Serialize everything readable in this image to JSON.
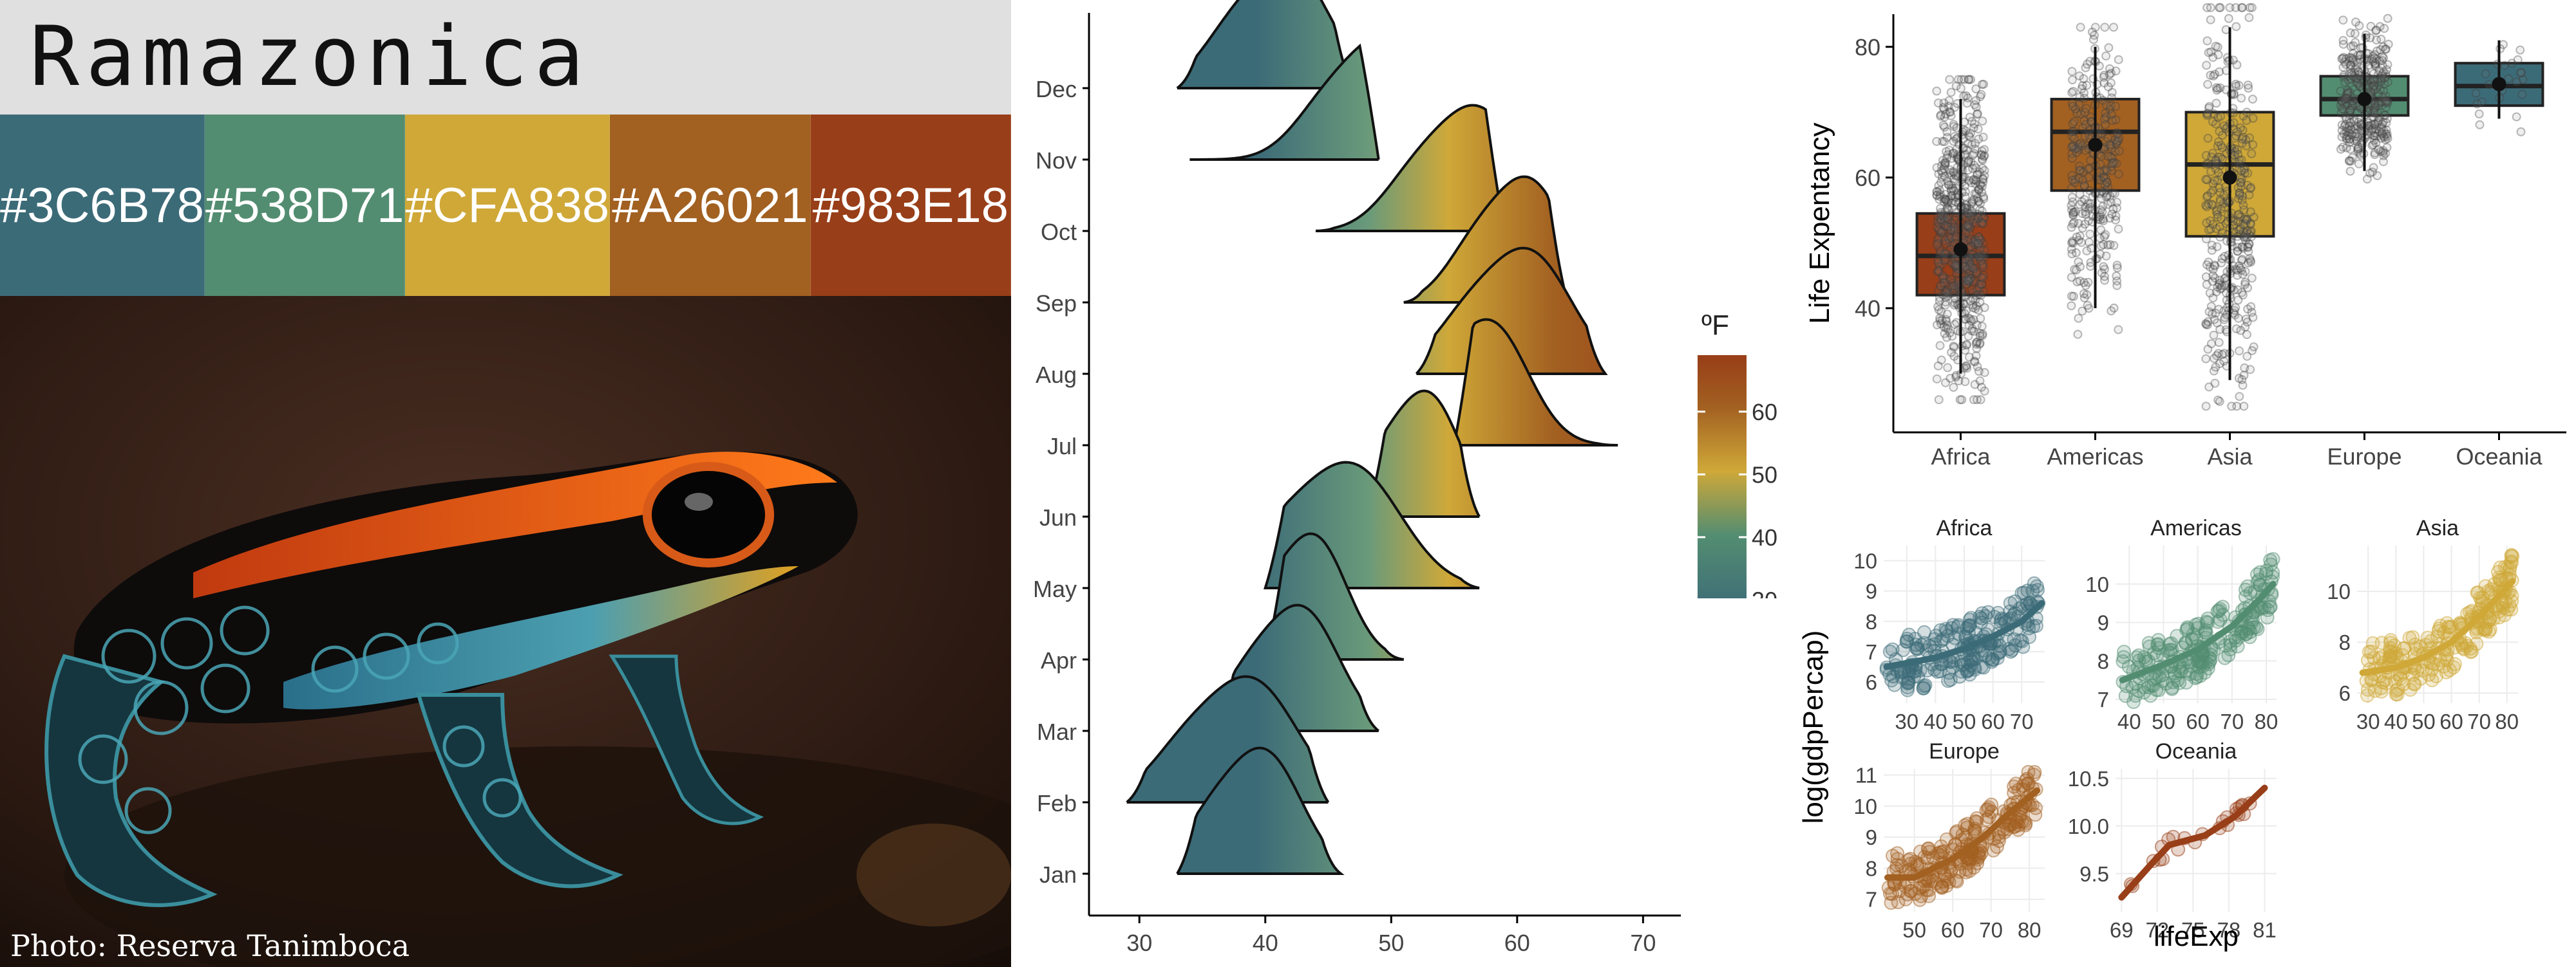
{
  "palette": {
    "name": "Ramazonica",
    "colors": [
      "#3C6B78",
      "#538D71",
      "#CFA838",
      "#A26021",
      "#983E18"
    ],
    "labels": [
      "#3C6B78",
      "#538D71",
      "#CFA838",
      "#A26021",
      "#983E18"
    ]
  },
  "photo": {
    "credit": "Photo: Reserva Tanimboca"
  },
  "chart_data": [
    {
      "type": "ridgeline",
      "months": [
        "Jan",
        "Feb",
        "Mar",
        "Apr",
        "May",
        "Jun",
        "Jul",
        "Aug",
        "Sep",
        "Oct",
        "Nov",
        "Dec"
      ],
      "peaks": [
        40,
        39,
        43,
        44,
        47,
        53,
        58,
        61,
        61,
        57,
        50,
        42
      ],
      "ranges": [
        [
          33,
          46
        ],
        [
          29,
          45
        ],
        [
          36,
          49
        ],
        [
          40,
          51
        ],
        [
          40,
          57
        ],
        [
          48,
          57
        ],
        [
          55,
          68
        ],
        [
          52,
          67
        ],
        [
          51,
          64
        ],
        [
          44,
          59
        ],
        [
          34,
          49
        ],
        [
          33,
          47
        ]
      ],
      "xticks": [
        30,
        40,
        50,
        60,
        70
      ],
      "xlim": [
        26,
        73
      ],
      "legend": {
        "title": "ºF",
        "ticks": [
          30,
          40,
          50,
          60
        ],
        "range": [
          28,
          69
        ]
      }
    },
    {
      "type": "box",
      "categories": [
        "Africa",
        "Americas",
        "Asia",
        "Europe",
        "Oceania"
      ],
      "colors": [
        "#983E18",
        "#A26021",
        "#CFA838",
        "#538D71",
        "#3C6B78"
      ],
      "stats": [
        {
          "min": 30,
          "q1": 42,
          "median": 48,
          "q3": 54.5,
          "max": 72,
          "mean": 49
        },
        {
          "min": 40,
          "q1": 58,
          "median": 67,
          "q3": 72,
          "max": 80,
          "mean": 65
        },
        {
          "min": 29,
          "q1": 51,
          "median": 62,
          "q3": 70,
          "max": 83,
          "mean": 60
        },
        {
          "min": 61,
          "q1": 69.5,
          "median": 72,
          "q3": 75.5,
          "max": 82,
          "mean": 72
        },
        {
          "min": 69,
          "q1": 71,
          "median": 74,
          "q3": 77.5,
          "max": 81,
          "mean": 74.3
        }
      ],
      "ylabel": "Life Expentancy",
      "yticks": [
        40,
        60,
        80
      ],
      "ylim": [
        21,
        85
      ]
    },
    {
      "type": "scatter-facets",
      "ylabel": "log(gdpPercap)",
      "xlabel": "lifeExp",
      "facets": [
        {
          "name": "Africa",
          "color": "#3C6B78",
          "xlim": [
            22,
            78
          ],
          "xticks": [
            30,
            40,
            50,
            60,
            70
          ],
          "ylim": [
            5.3,
            10.5
          ],
          "yticks": [
            6,
            7,
            8,
            9,
            10
          ],
          "trend": [
            [
              23,
              6.5
            ],
            [
              40,
              6.8
            ],
            [
              50,
              7.1
            ],
            [
              60,
              7.5
            ],
            [
              70,
              8.0
            ],
            [
              77,
              8.6
            ]
          ]
        },
        {
          "name": "Americas",
          "color": "#538D71",
          "xlim": [
            36,
            83
          ],
          "xticks": [
            40,
            50,
            60,
            70,
            80
          ],
          "ylim": [
            6.9,
            11
          ],
          "yticks": [
            7,
            8,
            9,
            10
          ],
          "trend": [
            [
              38,
              7.5
            ],
            [
              50,
              7.9
            ],
            [
              60,
              8.3
            ],
            [
              70,
              8.9
            ],
            [
              78,
              9.6
            ],
            [
              82,
              10.0
            ]
          ]
        },
        {
          "name": "Asia",
          "color": "#CFA838",
          "xlim": [
            26,
            84
          ],
          "xticks": [
            30,
            40,
            50,
            60,
            70,
            80
          ],
          "ylim": [
            5.6,
            11.8
          ],
          "yticks": [
            6,
            8,
            10
          ],
          "trend": [
            [
              28,
              6.8
            ],
            [
              40,
              7.0
            ],
            [
              50,
              7.4
            ],
            [
              60,
              8.0
            ],
            [
              70,
              9.0
            ],
            [
              82,
              10.4
            ]
          ]
        },
        {
          "name": "Europe",
          "color": "#A26021",
          "xlim": [
            42,
            84
          ],
          "xticks": [
            50,
            60,
            70,
            80
          ],
          "ylim": [
            6.6,
            11.2
          ],
          "yticks": [
            7,
            8,
            9,
            10,
            11
          ],
          "trend": [
            [
              43,
              7.7
            ],
            [
              50,
              7.7
            ],
            [
              60,
              8.3
            ],
            [
              68,
              9.0
            ],
            [
              75,
              9.8
            ],
            [
              82,
              10.5
            ]
          ]
        },
        {
          "name": "Oceania",
          "color": "#983E18",
          "xlim": [
            68.5,
            82
          ],
          "xticks": [
            69,
            72,
            75,
            78,
            81
          ],
          "ylim": [
            9.1,
            10.6
          ],
          "yticks": [
            9.5,
            10.0,
            10.5
          ],
          "trend": [
            [
              69,
              9.25
            ],
            [
              71.5,
              9.6
            ],
            [
              73,
              9.8
            ],
            [
              76,
              9.9
            ],
            [
              78.5,
              10.1
            ],
            [
              81,
              10.4
            ]
          ]
        }
      ]
    }
  ]
}
